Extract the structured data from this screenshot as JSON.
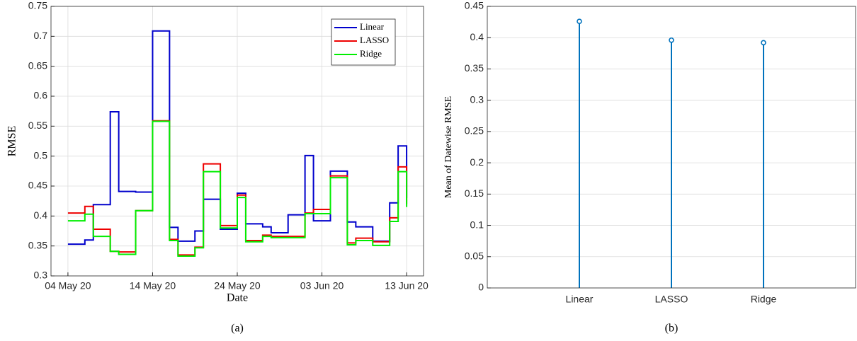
{
  "chart_data": [
    {
      "type": "stairs",
      "caption": "(a)",
      "xlabel": "Date",
      "ylabel": "RMSE",
      "x": [
        "2020-05-04",
        "2020-05-06",
        "2020-05-07",
        "2020-05-09",
        "2020-05-10",
        "2020-05-12",
        "2020-05-14",
        "2020-05-16",
        "2020-05-17",
        "2020-05-19",
        "2020-05-20",
        "2020-05-22",
        "2020-05-24",
        "2020-05-25",
        "2020-05-27",
        "2020-05-28",
        "2020-05-30",
        "2020-06-01",
        "2020-06-02",
        "2020-06-04",
        "2020-06-06",
        "2020-06-07",
        "2020-06-09",
        "2020-06-11",
        "2020-06-12",
        "2020-06-13"
      ],
      "series": [
        {
          "name": "Linear",
          "color": "#0000cc",
          "values": [
            0.353,
            0.36,
            0.419,
            0.574,
            0.441,
            0.44,
            0.709,
            0.381,
            0.358,
            0.375,
            0.428,
            0.378,
            0.438,
            0.387,
            0.382,
            0.372,
            0.402,
            0.501,
            0.392,
            0.475,
            0.39,
            0.382,
            0.358,
            0.422,
            0.517,
            0.43
          ]
        },
        {
          "name": "LASSO",
          "color": "#ee0000",
          "values": [
            0.405,
            0.416,
            0.378,
            0.341,
            0.34,
            0.409,
            0.559,
            0.361,
            0.335,
            0.348,
            0.487,
            0.384,
            0.435,
            0.359,
            0.368,
            0.366,
            0.366,
            0.405,
            0.411,
            0.467,
            0.355,
            0.363,
            0.357,
            0.397,
            0.482,
            0.42
          ]
        },
        {
          "name": "Ridge",
          "color": "#00ee00",
          "values": [
            0.392,
            0.403,
            0.366,
            0.341,
            0.336,
            0.409,
            0.558,
            0.359,
            0.333,
            0.347,
            0.474,
            0.38,
            0.431,
            0.357,
            0.366,
            0.364,
            0.364,
            0.404,
            0.404,
            0.464,
            0.352,
            0.359,
            0.351,
            0.391,
            0.474,
            0.415
          ]
        }
      ],
      "xlim": [
        "2020-05-02",
        "2020-06-15"
      ],
      "xticks": [
        {
          "value": "2020-05-04",
          "label": "04 May 20"
        },
        {
          "value": "2020-05-14",
          "label": "14 May 20"
        },
        {
          "value": "2020-05-24",
          "label": "24 May 20"
        },
        {
          "value": "2020-06-03",
          "label": "03 Jun 20"
        },
        {
          "value": "2020-06-13",
          "label": "13 Jun 20"
        }
      ],
      "ylim": [
        0.3,
        0.75
      ],
      "yticks": [
        0.3,
        0.35,
        0.4,
        0.45,
        0.5,
        0.55,
        0.6,
        0.65,
        0.7,
        0.75
      ],
      "grid": true,
      "legend": "northeast"
    },
    {
      "type": "stem",
      "caption": "(b)",
      "ylabel": "Mean of Datewise RMSE",
      "categories": [
        "Linear",
        "LASSO",
        "Ridge"
      ],
      "values": [
        0.426,
        0.396,
        0.392
      ],
      "color": "#0072bd",
      "ylim": [
        0,
        0.45
      ],
      "yticks": [
        0,
        0.05,
        0.1,
        0.15,
        0.2,
        0.25,
        0.3,
        0.35,
        0.4,
        0.45
      ],
      "grid": true
    }
  ]
}
